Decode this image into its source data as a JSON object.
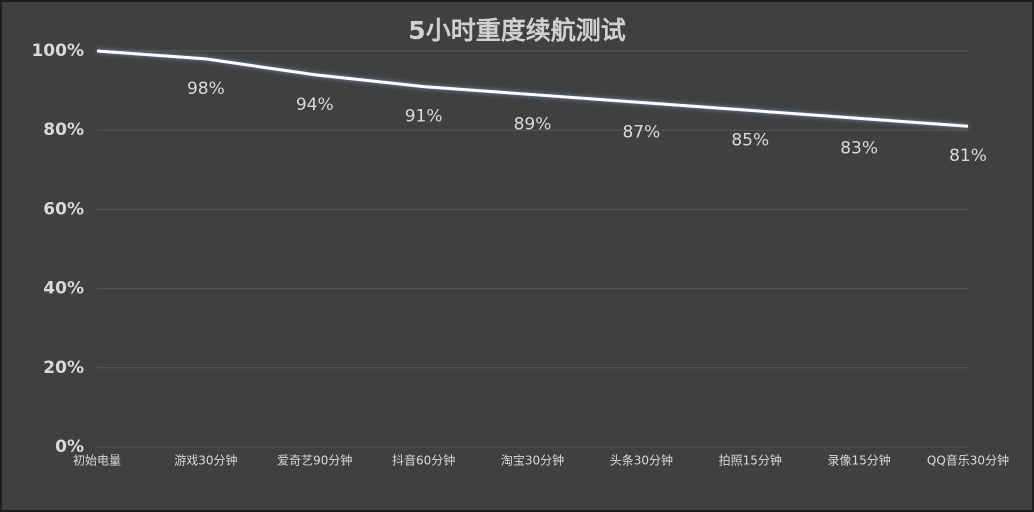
{
  "chart_data": {
    "type": "line",
    "title": "5小时重度续航测试",
    "categories": [
      "初始电量",
      "游戏30分钟",
      "爱奇艺90分钟",
      "抖音60分钟",
      "淘宝30分钟",
      "头条30分钟",
      "拍照15分钟",
      "录像15分钟",
      "QQ音乐30分钟"
    ],
    "values": [
      100,
      98,
      94,
      91,
      89,
      87,
      85,
      83,
      81
    ],
    "value_labels": [
      null,
      "98%",
      "94%",
      "91%",
      "89%",
      "87%",
      "85%",
      "83%",
      "81%"
    ],
    "color": "#ffffff",
    "ylim": [
      0,
      100
    ],
    "yticks": [
      {
        "value": 0,
        "label": "0%"
      },
      {
        "value": 20,
        "label": "20%"
      },
      {
        "value": 40,
        "label": "40%"
      },
      {
        "value": 60,
        "label": "60%"
      },
      {
        "value": 80,
        "label": "80%"
      },
      {
        "value": 100,
        "label": "100%"
      }
    ],
    "grid": true
  }
}
